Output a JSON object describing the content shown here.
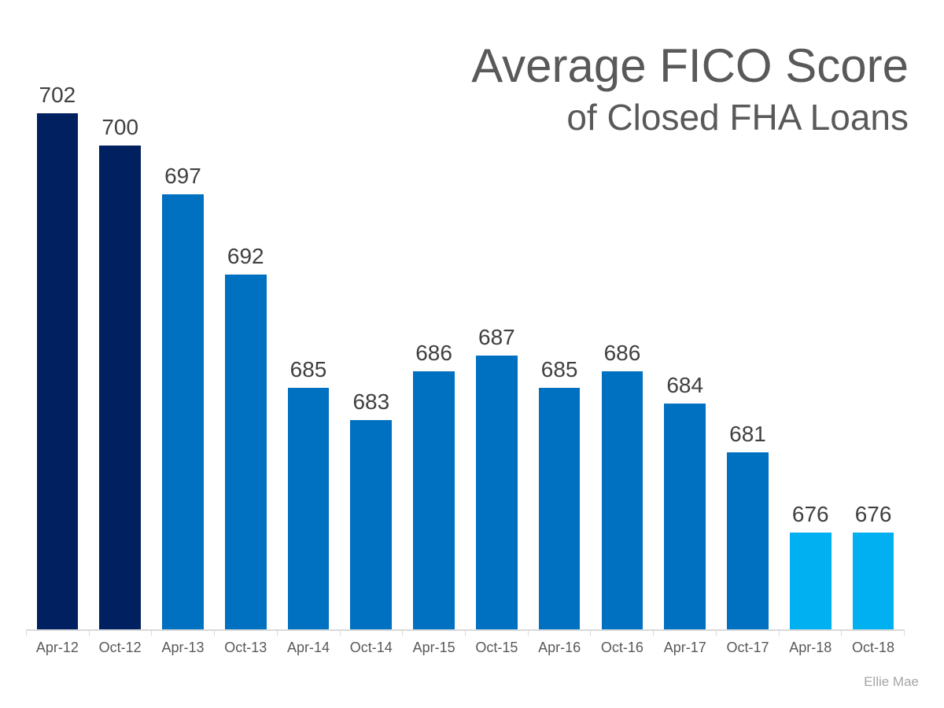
{
  "header": {
    "title": "Average FICO Score",
    "subtitle": "of Closed FHA Loans",
    "text_color": "#595959"
  },
  "chart_data": {
    "type": "bar",
    "title": "Average FICO Score",
    "subtitle": "of Closed FHA Loans",
    "xlabel": "",
    "ylabel": "",
    "categories": [
      "Apr-12",
      "Oct-12",
      "Apr-13",
      "Oct-13",
      "Apr-14",
      "Oct-14",
      "Apr-15",
      "Oct-15",
      "Apr-16",
      "Oct-16",
      "Apr-17",
      "Oct-17",
      "Apr-18",
      "Oct-18"
    ],
    "values": [
      702,
      700,
      697,
      692,
      685,
      683,
      686,
      687,
      685,
      686,
      684,
      681,
      676,
      676
    ],
    "bar_colors": [
      "#002060",
      "#002060",
      "#0070c0",
      "#0070c0",
      "#0070c0",
      "#0070c0",
      "#0070c0",
      "#0070c0",
      "#0070c0",
      "#0070c0",
      "#0070c0",
      "#0070c0",
      "#00b0f0",
      "#00b0f0"
    ],
    "value_labels_shown": true,
    "value_label_color": "#404040",
    "tick_label_color": "#595959",
    "axis_line_color": "#d9d9d9",
    "ylim": [
      670,
      706
    ],
    "grid": false,
    "legend": false,
    "y_axis_shown": false
  },
  "attribution": {
    "text": "Ellie Mae",
    "color": "#a6a6a6"
  }
}
